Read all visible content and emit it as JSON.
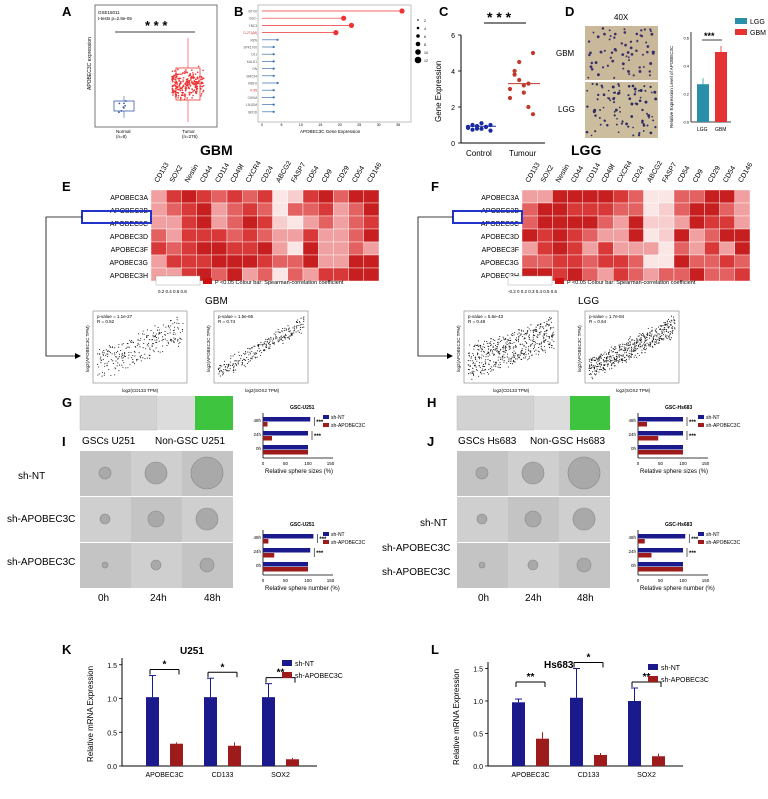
{
  "panels": {
    "A": {
      "letter": "A",
      "series_id": "GSE16011",
      "pval": "t-tests p=2.8e-05",
      "ylabel": "APOBEC3C expression",
      "groups": [
        {
          "name": "Normal",
          "n": "(n=8)"
        },
        {
          "name": "Tumor",
          "n": "(n=276)"
        }
      ],
      "sig": "* * *"
    },
    "B": {
      "letter": "B",
      "xlabel": "APOBEC3C Gene Expression",
      "genes": [
        "BT-00",
        "GSC-",
        "YBC3",
        "D-271(M)",
        "RZN",
        "SPK1700",
        "DJ1",
        "KALD1",
        "ON",
        "SMC54",
        "KB5-6",
        "K-65",
        "CHKM",
        "LN1DM",
        "BFDD"
      ],
      "values": [
        36,
        21,
        23,
        19,
        4,
        3,
        3,
        3,
        3,
        3,
        4,
        3,
        3,
        3,
        3
      ],
      "legend": [
        "2",
        "4",
        "6",
        "8",
        "10",
        "12"
      ],
      "xticks": [
        "0",
        "5",
        "10",
        "15",
        "20",
        "25",
        "30",
        "35"
      ]
    },
    "C": {
      "letter": "C",
      "ylabel": "Gene Expression",
      "groups": [
        "Control",
        "Tumour"
      ],
      "sig": "* * *",
      "control": [
        0.9,
        1.0,
        0.8,
        1.1,
        0.9,
        1.0,
        0.95,
        0.85,
        1.05,
        0.9,
        1.0,
        0.8
      ],
      "tumour": [
        2.5,
        3.8,
        4.5,
        3.2,
        2.0,
        5.0,
        3.0,
        4.0,
        3.5,
        2.8,
        3.3,
        1.6
      ],
      "yticks": [
        "0",
        "2",
        "4",
        "6"
      ]
    },
    "D": {
      "letter": "D",
      "magnification": "40X",
      "rows": [
        "GBM",
        "LGG"
      ],
      "ylabel": "Relative Expression Level of APOBEC3C",
      "legend": [
        "LGG",
        "GBM"
      ],
      "sig": "***",
      "xticks": [
        "LGG",
        "GBM"
      ],
      "values": [
        0.27,
        0.5
      ],
      "yticks": [
        "0.0",
        "0.2",
        "0.4",
        "0.6"
      ]
    },
    "E": {
      "letter": "E",
      "title": "GBM",
      "markers": [
        "CD133",
        "SOX2",
        "Nestin",
        "CD44",
        "CD114",
        "CD49f",
        "CXCR4",
        "CD24",
        "ABCG2",
        "FASP7",
        "CD54",
        "CD9",
        "CD29",
        "CD54",
        "CD146"
      ],
      "genes": [
        "APOBEC3A",
        "APOBEC3B",
        "APOBEC3C",
        "APOBEC3D",
        "APOBEC3F",
        "APOBEC3G",
        "APOBEC3H"
      ],
      "legend_text": "P <0.05  Colour bar:  Spearman-correlation coefficient",
      "legend_ticks": "0.2 0.4 0.6 0.8",
      "scatter_title": "GBM",
      "scatter1": {
        "pval": "p-value = 1.1e-27",
        "r": "R = 0.52",
        "xlabel": "log2(CD133 TPM)",
        "ylabel": "log2(APOBEC3C TPM)"
      },
      "scatter2": {
        "pval": "p-value = 1.5e-65",
        "r": "R = 0.74",
        "xlabel": "log2(SOX2 TPM)",
        "ylabel": "log2(APOBEC3C TPM)"
      }
    },
    "F": {
      "letter": "F",
      "title": "LGG",
      "markers": [
        "CD133",
        "SOX2",
        "Nestin",
        "CD44",
        "CD114",
        "CD49f",
        "CXCR4",
        "CD24",
        "ABCG2",
        "FASP7",
        "CD54",
        "CD9",
        "CD29",
        "CD54",
        "CD146"
      ],
      "genes": [
        "APOBEC3A",
        "APOBEC3B",
        "APOBEC3C",
        "APOBEC3D",
        "APOBEC3F",
        "APOBEC3G",
        "APOBEC3H"
      ],
      "legend_text": "P <0.05  Colour bar:  Spearman-correlation coefficient",
      "legend_ticks": "-0.2 0 0.2 0.3 0.4 0.5 0.6",
      "scatter_title": "LGG",
      "scatter1": {
        "pval": "p-value = 5.6e-43",
        "r": "R = 0.48",
        "xlabel": "log2(CD133 TPM)",
        "ylabel": "log2(APOBEC3C TPM)"
      },
      "scatter2": {
        "pval": "p-value = 1.7e-84",
        "r": "R = 0.64",
        "xlabel": "log2(SOX2 TPM)",
        "ylabel": "log2(APOBEC3C TPM)"
      }
    },
    "G": {
      "letter": "G",
      "chart_title": "GSC-U251",
      "xlabel": "Relative sphere sizes (%)",
      "rows": [
        "48h",
        "24h",
        "0h"
      ],
      "legend": [
        "sh-NT",
        "sh-APOBEC3C"
      ],
      "sig": "***",
      "nt": [
        105,
        100,
        100
      ],
      "sh": [
        10,
        20,
        100
      ],
      "xticks": [
        "0",
        "50",
        "100",
        "150"
      ]
    },
    "H": {
      "letter": "H",
      "chart_title": "GSC-Hs683",
      "xlabel": "Relative sphere sizes (%)",
      "rows": [
        "48h",
        "24h",
        "0h"
      ],
      "legend": [
        "sh-NT",
        "sh-APOBEC3C"
      ],
      "sig": "***",
      "nt": [
        100,
        100,
        100
      ],
      "sh": [
        20,
        45,
        100
      ],
      "xticks": [
        "0",
        "50",
        "100",
        "150"
      ]
    },
    "I": {
      "letter": "I",
      "headers": [
        "GSCs U251",
        "Non-GSC U251"
      ],
      "rows": [
        "sh-NT",
        "sh-APOBEC3C",
        "sh-APOBEC3C"
      ],
      "times": [
        "0h",
        "24h",
        "48h"
      ],
      "chart_title": "GSC-U251",
      "xlabel": "Relative sphere number (%)",
      "chart_rows": [
        "48h",
        "24h",
        "0h"
      ],
      "legend": [
        "sh-NT",
        "sh-APOBEC3C"
      ],
      "sig": "***",
      "nt": [
        112,
        105,
        100
      ],
      "sh": [
        12,
        25,
        100
      ],
      "xticks": [
        "0",
        "50",
        "100",
        "150"
      ]
    },
    "J": {
      "letter": "J",
      "headers": [
        "GSCs Hs683",
        "Non-GSC Hs683"
      ],
      "rows": [
        "sh-NT",
        "sh-APOBEC3C",
        "sh-APOBEC3C"
      ],
      "times": [
        "0h",
        "24h",
        "48h"
      ],
      "chart_title": "GSC-Hs683",
      "xlabel": "Relative sphere number (%)",
      "chart_rows": [
        "48h",
        "24h",
        "0h"
      ],
      "legend": [
        "sh-NT",
        "sh-APOBEC3C"
      ],
      "sig": "***",
      "nt": [
        105,
        100,
        100
      ],
      "sh": [
        15,
        30,
        100
      ],
      "xticks": [
        "0",
        "50",
        "100",
        "150"
      ]
    },
    "K": {
      "letter": "K",
      "title": "U251",
      "ylabel": "Relative mRNA Expression",
      "categories": [
        "APOBEC3C",
        "CD133",
        "SOX2"
      ],
      "legend": [
        "sh-NT",
        "sh-APOBEC3C"
      ],
      "sig": [
        "*",
        "*",
        "**"
      ],
      "nt": [
        1.02,
        1.02,
        1.02
      ],
      "nt_err": [
        0.32,
        0.28,
        0.2
      ],
      "sh": [
        0.33,
        0.3,
        0.1
      ],
      "sh_err": [
        0.02,
        0.05,
        0.02
      ],
      "yticks": [
        "0.0",
        "0.5",
        "1.0",
        "1.5"
      ],
      "ymax": 1.6
    },
    "L": {
      "letter": "L",
      "title": "Hs683",
      "ylabel": "Relative mRNA Expression",
      "categories": [
        "APOBEC3C",
        "CD133",
        "SOX2"
      ],
      "legend": [
        "sh-NT",
        "sh-APOBEC3C"
      ],
      "sig": [
        "**",
        "*",
        "**"
      ],
      "nt": [
        0.98,
        1.05,
        1.0
      ],
      "nt_err": [
        0.05,
        0.45,
        0.2
      ],
      "sh": [
        0.42,
        0.17,
        0.15
      ],
      "sh_err": [
        0.1,
        0.03,
        0.04
      ],
      "yticks": [
        "0.0",
        "0.5",
        "1.0",
        "1.5"
      ],
      "ymax": 1.6
    }
  },
  "colors": {
    "navy": "#1a1a8c",
    "darkred": "#9e1b1b",
    "red": "#e53333",
    "teal": "#2a8fa8",
    "blue_box": "#2233cc",
    "green": "#3ec43e"
  },
  "chart_data": [
    {
      "type": "bar",
      "title": "U251",
      "categories": [
        "APOBEC3C",
        "CD133",
        "SOX2"
      ],
      "series": [
        {
          "name": "sh-NT",
          "values": [
            1.02,
            1.02,
            1.02
          ]
        },
        {
          "name": "sh-APOBEC3C",
          "values": [
            0.33,
            0.3,
            0.1
          ]
        }
      ],
      "ylabel": "Relative mRNA Expression",
      "ylim": [
        0,
        1.6
      ]
    },
    {
      "type": "bar",
      "title": "Hs683",
      "categories": [
        "APOBEC3C",
        "CD133",
        "SOX2"
      ],
      "series": [
        {
          "name": "sh-NT",
          "values": [
            0.98,
            1.05,
            1.0
          ]
        },
        {
          "name": "sh-APOBEC3C",
          "values": [
            0.42,
            0.17,
            0.15
          ]
        }
      ],
      "ylabel": "Relative mRNA Expression",
      "ylim": [
        0,
        1.6
      ]
    },
    {
      "type": "bar",
      "title": "GSC-U251",
      "categories": [
        "48h",
        "24h",
        "0h"
      ],
      "series": [
        {
          "name": "sh-NT",
          "values": [
            105,
            100,
            100
          ]
        },
        {
          "name": "sh-APOBEC3C",
          "values": [
            10,
            20,
            100
          ]
        }
      ],
      "xlabel": "Relative sphere sizes (%)"
    },
    {
      "type": "bar",
      "title": "GSC-Hs683",
      "categories": [
        "48h",
        "24h",
        "0h"
      ],
      "series": [
        {
          "name": "sh-NT",
          "values": [
            100,
            100,
            100
          ]
        },
        {
          "name": "sh-APOBEC3C",
          "values": [
            20,
            45,
            100
          ]
        }
      ],
      "xlabel": "Relative sphere sizes (%)"
    },
    {
      "type": "bar",
      "title": "GSC-U251",
      "categories": [
        "48h",
        "24h",
        "0h"
      ],
      "series": [
        {
          "name": "sh-NT",
          "values": [
            112,
            105,
            100
          ]
        },
        {
          "name": "sh-APOBEC3C",
          "values": [
            12,
            25,
            100
          ]
        }
      ],
      "xlabel": "Relative sphere number (%)"
    },
    {
      "type": "bar",
      "title": "GSC-Hs683",
      "categories": [
        "48h",
        "24h",
        "0h"
      ],
      "series": [
        {
          "name": "sh-NT",
          "values": [
            105,
            100,
            100
          ]
        },
        {
          "name": "sh-APOBEC3C",
          "values": [
            15,
            30,
            100
          ]
        }
      ],
      "xlabel": "Relative sphere number (%)"
    },
    {
      "type": "bar",
      "title": "",
      "categories": [
        "LGG",
        "GBM"
      ],
      "values": [
        0.27,
        0.5
      ],
      "ylabel": "Relative Expression Level of APOBEC3C",
      "ylim": [
        0,
        0.6
      ]
    },
    {
      "type": "scatter",
      "title": "",
      "categories": [
        "Control",
        "Tumour"
      ],
      "series": [
        {
          "name": "Control",
          "values": [
            0.9,
            1.0,
            0.8,
            1.1,
            0.9,
            1.0,
            0.95,
            0.85,
            1.05,
            0.9,
            1.0,
            0.8
          ]
        },
        {
          "name": "Tumour",
          "values": [
            2.5,
            3.8,
            4.5,
            3.2,
            2.0,
            5.0,
            3.0,
            4.0,
            3.5,
            2.8,
            3.3,
            1.6
          ]
        }
      ],
      "ylabel": "Gene Expression",
      "ylim": [
        0,
        6
      ]
    }
  ]
}
